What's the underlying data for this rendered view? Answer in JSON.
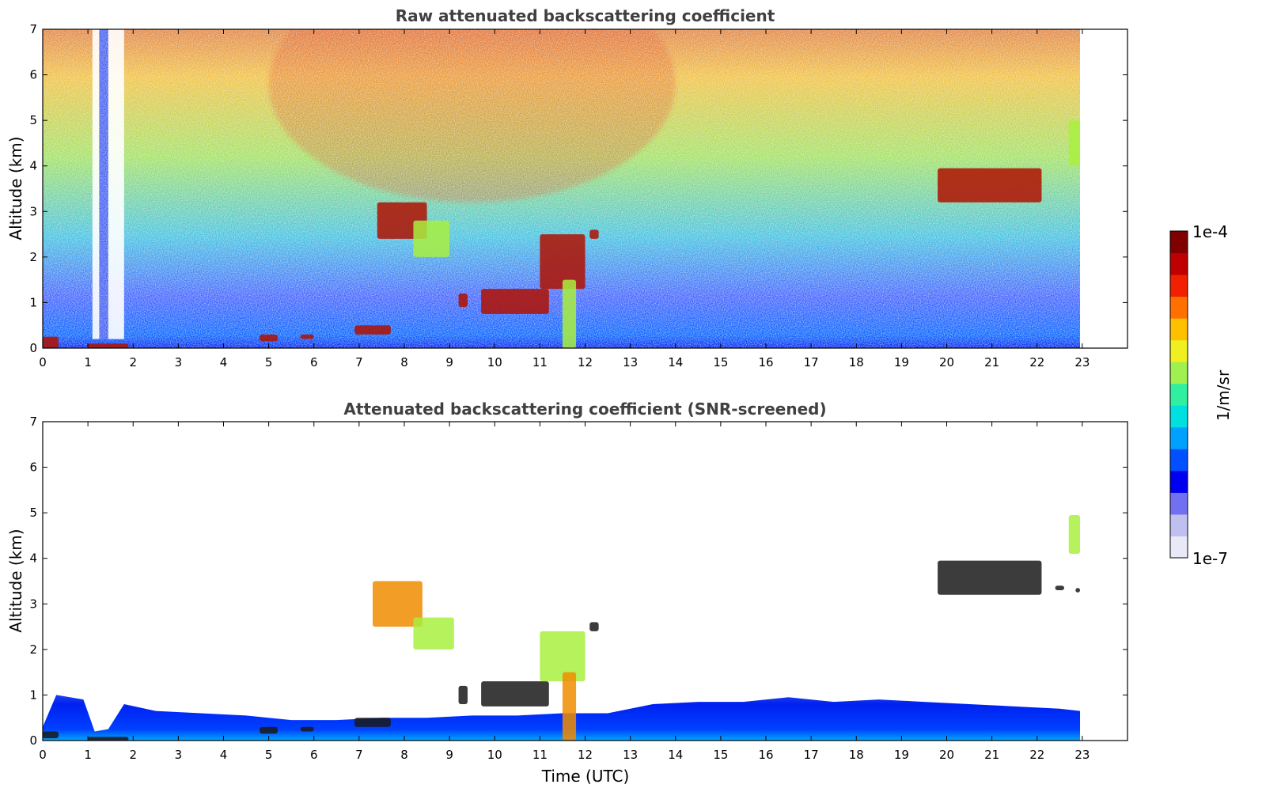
{
  "chart_data": [
    {
      "type": "heatmap",
      "title": "Raw attenuated backscattering coefficient",
      "xlabel": "",
      "ylabel": "Altitude (km)",
      "xlim": [
        0,
        24
      ],
      "ylim": [
        0,
        7
      ],
      "x_ticks": [
        "0",
        "1",
        "2",
        "3",
        "4",
        "5",
        "6",
        "7",
        "8",
        "9",
        "10",
        "11",
        "12",
        "13",
        "14",
        "15",
        "16",
        "17",
        "18",
        "19",
        "20",
        "21",
        "22",
        "23"
      ],
      "y_ticks": [
        "0",
        "1",
        "2",
        "3",
        "4",
        "5",
        "6",
        "7"
      ],
      "data_end_time": 22.95,
      "features": [
        {
          "t0": 0.0,
          "t1": 0.35,
          "z0": 0.0,
          "z1": 0.25,
          "level": "high"
        },
        {
          "t0": 1.0,
          "t1": 1.9,
          "z0": 0.0,
          "z1": 0.1,
          "level": "high"
        },
        {
          "t0": 4.8,
          "t1": 5.2,
          "z0": 0.15,
          "z1": 0.3,
          "level": "high"
        },
        {
          "t0": 5.7,
          "t1": 6.0,
          "z0": 0.2,
          "z1": 0.3,
          "level": "high"
        },
        {
          "t0": 6.9,
          "t1": 7.7,
          "z0": 0.3,
          "z1": 0.5,
          "level": "high"
        },
        {
          "t0": 7.4,
          "t1": 8.5,
          "z0": 2.4,
          "z1": 3.2,
          "level": "high"
        },
        {
          "t0": 8.2,
          "t1": 9.0,
          "z0": 2.0,
          "z1": 2.8,
          "level": "medium"
        },
        {
          "t0": 9.2,
          "t1": 9.4,
          "z0": 0.9,
          "z1": 1.2,
          "level": "high"
        },
        {
          "t0": 9.7,
          "t1": 11.2,
          "z0": 0.75,
          "z1": 1.3,
          "level": "high"
        },
        {
          "t0": 11.0,
          "t1": 12.0,
          "z0": 1.3,
          "z1": 2.5,
          "level": "high"
        },
        {
          "t0": 11.5,
          "t1": 11.8,
          "z0": 0.0,
          "z1": 1.5,
          "level": "medium"
        },
        {
          "t0": 12.1,
          "t1": 12.3,
          "z0": 2.4,
          "z1": 2.6,
          "level": "high"
        },
        {
          "t0": 19.8,
          "t1": 22.1,
          "z0": 3.2,
          "z1": 3.95,
          "level": "high"
        },
        {
          "t0": 22.7,
          "t1": 22.95,
          "z0": 4.0,
          "z1": 5.0,
          "level": "medium"
        }
      ]
    },
    {
      "type": "heatmap",
      "title": "Attenuated backscattering coefficient (SNR-screened)",
      "xlabel": "Time (UTC)",
      "ylabel": "Altitude (km)",
      "xlim": [
        0,
        24
      ],
      "ylim": [
        0,
        7
      ],
      "x_ticks": [
        "0",
        "1",
        "2",
        "3",
        "4",
        "5",
        "6",
        "7",
        "8",
        "9",
        "10",
        "11",
        "12",
        "13",
        "14",
        "15",
        "16",
        "17",
        "18",
        "19",
        "20",
        "21",
        "22",
        "23"
      ],
      "y_ticks": [
        "0",
        "1",
        "2",
        "3",
        "4",
        "5",
        "6",
        "7"
      ],
      "data_end_time": 22.95,
      "boundary_layer_top_km": [
        [
          0.0,
          0.3
        ],
        [
          0.3,
          1.0
        ],
        [
          0.9,
          0.9
        ],
        [
          1.15,
          0.2
        ],
        [
          1.45,
          0.25
        ],
        [
          1.8,
          0.8
        ],
        [
          2.5,
          0.65
        ],
        [
          3.5,
          0.6
        ],
        [
          4.5,
          0.55
        ],
        [
          5.5,
          0.45
        ],
        [
          6.5,
          0.45
        ],
        [
          7.5,
          0.5
        ],
        [
          8.5,
          0.5
        ],
        [
          9.5,
          0.55
        ],
        [
          10.5,
          0.55
        ],
        [
          11.5,
          0.6
        ],
        [
          12.5,
          0.6
        ],
        [
          13.5,
          0.8
        ],
        [
          14.5,
          0.85
        ],
        [
          15.5,
          0.85
        ],
        [
          16.5,
          0.95
        ],
        [
          17.5,
          0.85
        ],
        [
          18.5,
          0.9
        ],
        [
          19.5,
          0.85
        ],
        [
          20.5,
          0.8
        ],
        [
          21.5,
          0.75
        ],
        [
          22.5,
          0.7
        ],
        [
          22.95,
          0.65
        ]
      ],
      "features": [
        {
          "t0": 0.0,
          "t1": 0.35,
          "z0": 0.05,
          "z1": 0.2,
          "level": "black"
        },
        {
          "t0": 1.0,
          "t1": 1.9,
          "z0": 0.0,
          "z1": 0.08,
          "level": "black"
        },
        {
          "t0": 4.8,
          "t1": 5.2,
          "z0": 0.15,
          "z1": 0.3,
          "level": "black"
        },
        {
          "t0": 5.7,
          "t1": 6.0,
          "z0": 0.2,
          "z1": 0.3,
          "level": "black"
        },
        {
          "t0": 6.9,
          "t1": 7.7,
          "z0": 0.3,
          "z1": 0.5,
          "level": "black"
        },
        {
          "t0": 7.3,
          "t1": 8.4,
          "z0": 2.5,
          "z1": 3.5,
          "level": "medium-high"
        },
        {
          "t0": 8.2,
          "t1": 9.1,
          "z0": 2.0,
          "z1": 2.7,
          "level": "medium"
        },
        {
          "t0": 9.2,
          "t1": 9.4,
          "z0": 0.8,
          "z1": 1.2,
          "level": "black"
        },
        {
          "t0": 9.7,
          "t1": 11.2,
          "z0": 0.75,
          "z1": 1.3,
          "level": "black"
        },
        {
          "t0": 11.0,
          "t1": 12.0,
          "z0": 1.3,
          "z1": 2.4,
          "level": "medium"
        },
        {
          "t0": 11.5,
          "t1": 11.8,
          "z0": 0.0,
          "z1": 1.5,
          "level": "medium-high"
        },
        {
          "t0": 12.1,
          "t1": 12.3,
          "z0": 2.4,
          "z1": 2.6,
          "level": "black"
        },
        {
          "t0": 19.8,
          "t1": 22.1,
          "z0": 3.2,
          "z1": 3.95,
          "level": "black"
        },
        {
          "t0": 22.4,
          "t1": 22.6,
          "z0": 3.3,
          "z1": 3.4,
          "level": "black"
        },
        {
          "t0": 22.85,
          "t1": 22.95,
          "z0": 3.25,
          "z1": 3.35,
          "level": "black"
        },
        {
          "t0": 22.7,
          "t1": 22.95,
          "z0": 4.1,
          "z1": 4.95,
          "level": "medium"
        }
      ]
    }
  ],
  "colorbar": {
    "label": "1/m/sr",
    "max_label": "1e-4",
    "min_label": "1e-7",
    "colors": [
      "#e8e8f8",
      "#c0c0f0",
      "#7070f0",
      "#0000f0",
      "#0050ff",
      "#00a0ff",
      "#00e0e0",
      "#30f0a0",
      "#a0f050",
      "#f0f020",
      "#ffc000",
      "#ff7000",
      "#f02000",
      "#c00000",
      "#800000"
    ]
  }
}
